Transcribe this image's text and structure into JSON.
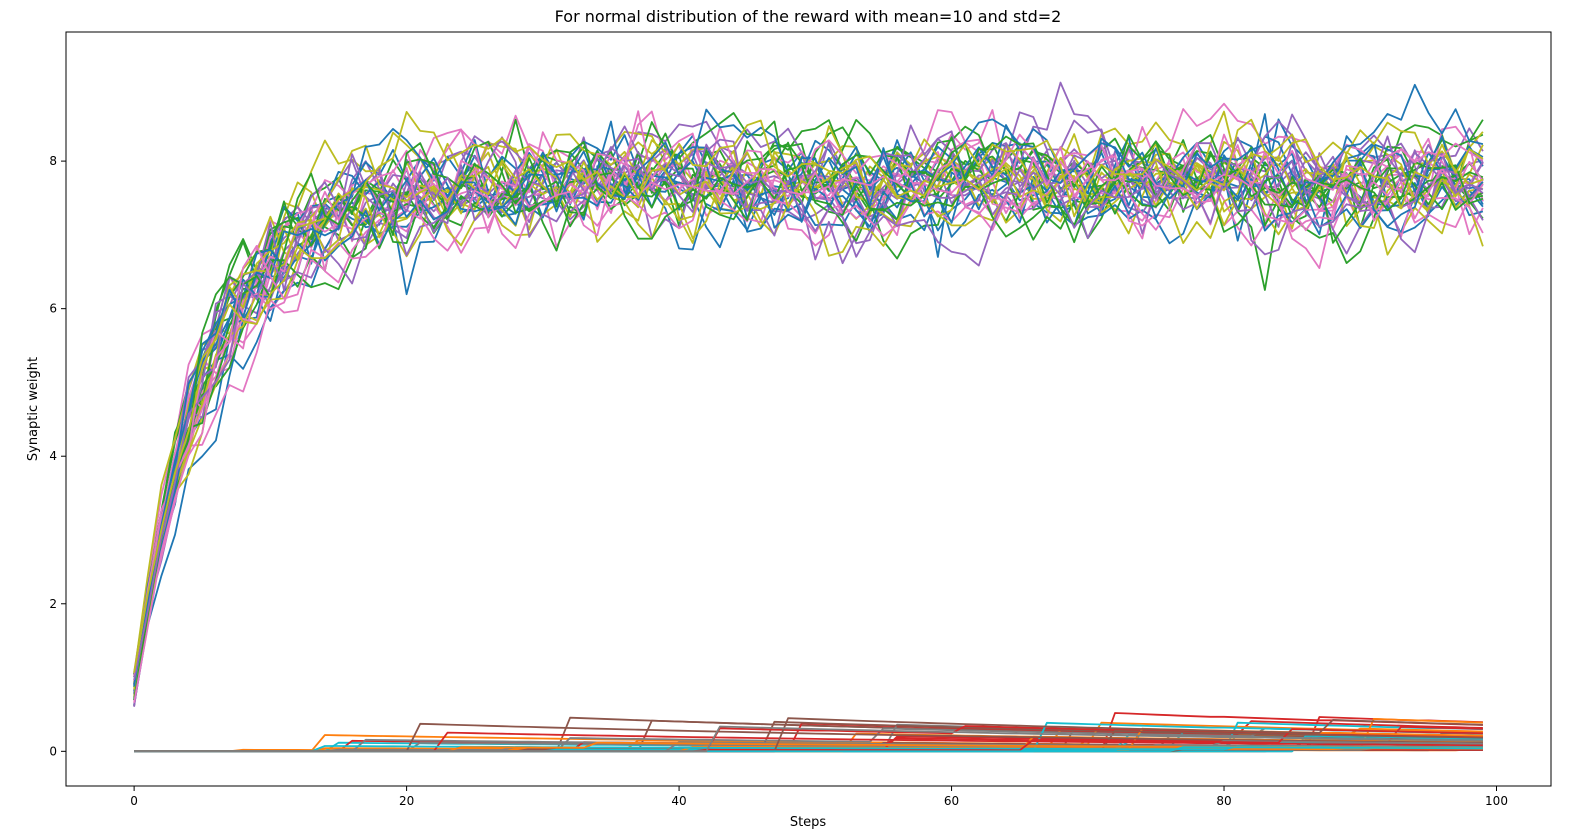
{
  "chart_data": {
    "type": "line",
    "title": "For normal distribution of the reward with mean=10 and std=2",
    "xlabel": "Steps",
    "ylabel": "Synaptic weight",
    "xlim": [
      -5,
      104
    ],
    "ylim": [
      -0.47,
      9.75
    ],
    "xticks": [
      0,
      20,
      40,
      60,
      80,
      100
    ],
    "yticks": [
      0,
      2,
      4,
      6,
      8
    ],
    "grid": false,
    "legend": "none",
    "steps": 100,
    "groups": [
      {
        "description": "high-weight synapses",
        "count": 40,
        "start_range": [
          0.6,
          1.2
        ],
        "plateau": 7.7,
        "rise_time_constant": 5.5,
        "noise_std": 0.28
      },
      {
        "description": "low-weight synapses",
        "count": 60,
        "start": 0,
        "typical_range": [
          0,
          0.5
        ]
      }
    ],
    "colors": [
      "#1f77b4",
      "#ff7f0e",
      "#2ca02c",
      "#d62728",
      "#9467bd",
      "#8c564b",
      "#e377c2",
      "#7f7f7f",
      "#bcbd22",
      "#17becf"
    ],
    "high_group_colors": [
      "#1f77b4",
      "#2ca02c",
      "#9467bd",
      "#e377c2",
      "#bcbd22"
    ],
    "low_group_colors": [
      "#ff7f0e",
      "#d62728",
      "#8c564b",
      "#17becf",
      "#7f7f7f"
    ]
  }
}
